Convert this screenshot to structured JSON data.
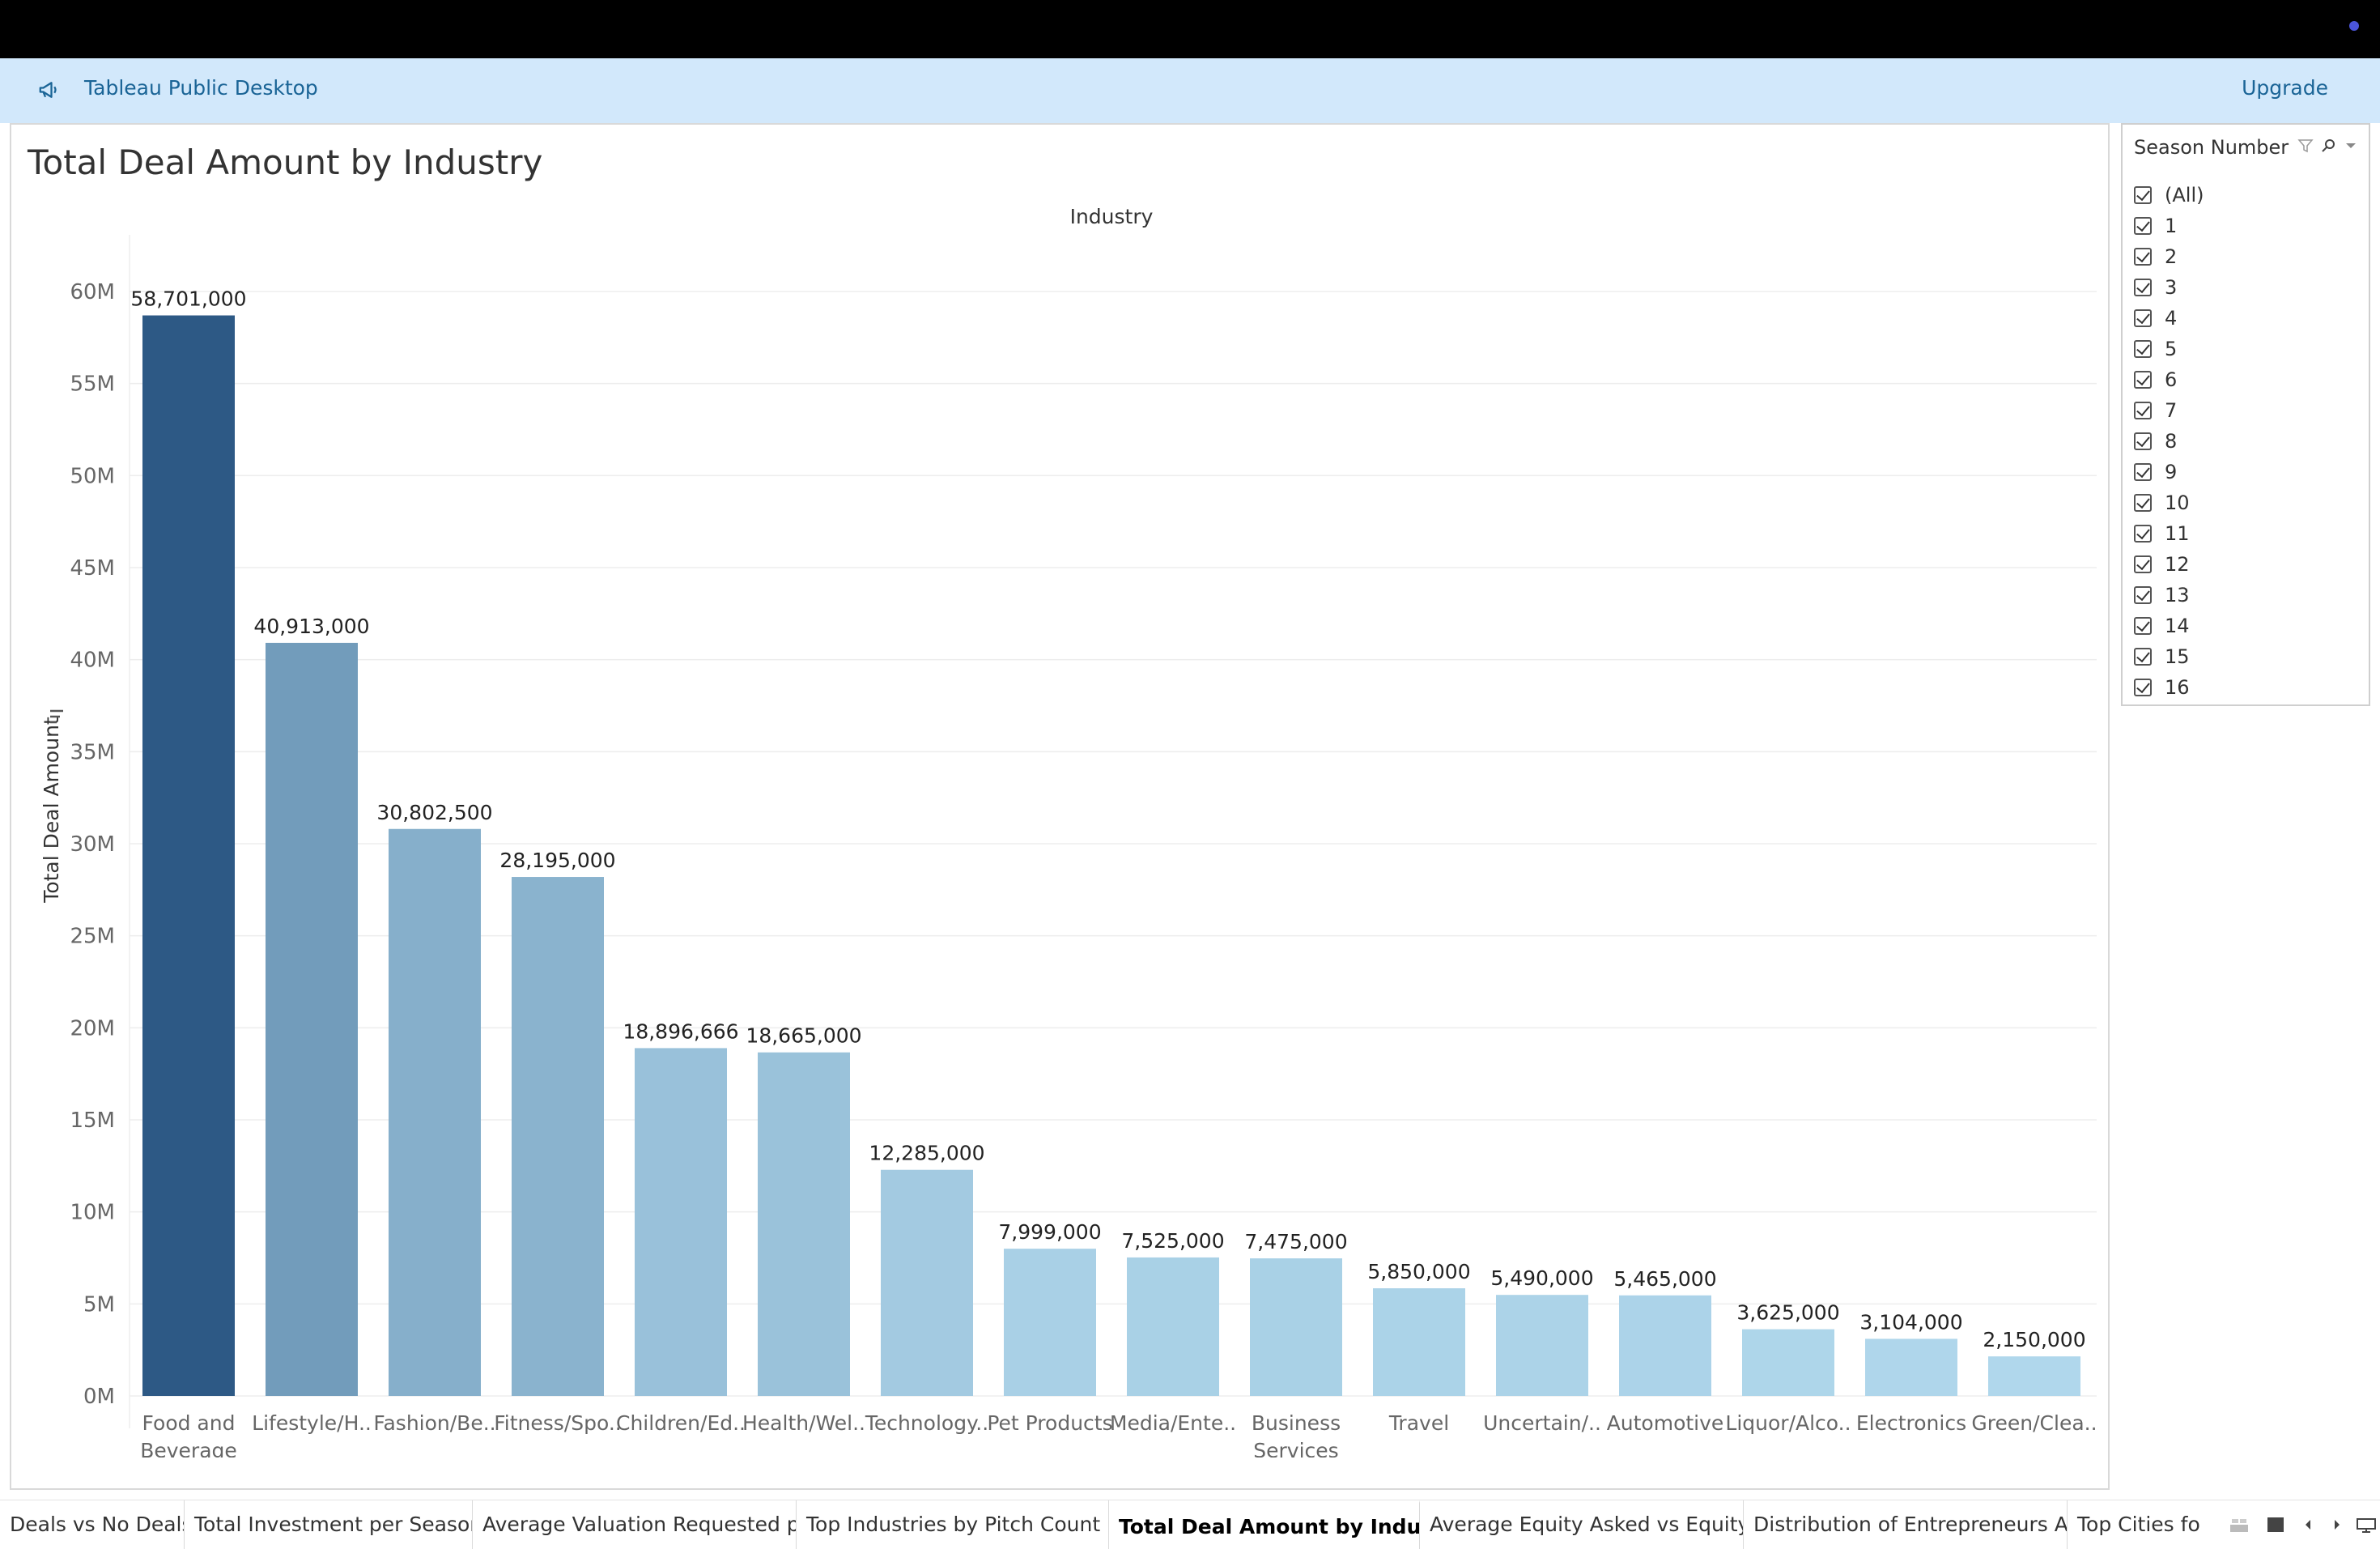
{
  "banner": {
    "app_title": "Tableau Public Desktop",
    "upgrade_label": "Upgrade"
  },
  "sheet": {
    "title": "Total Deal Amount by Industry"
  },
  "filter": {
    "title": "Season Number",
    "items": [
      "(All)",
      "1",
      "2",
      "3",
      "4",
      "5",
      "6",
      "7",
      "8",
      "9",
      "10",
      "11",
      "12",
      "13",
      "14",
      "15",
      "16"
    ]
  },
  "tabs": [
    "Deals vs No Deals",
    "Total Investment per Season",
    "Average Valuation Requested p...",
    "Top Industries by Pitch Count",
    "Total Deal Amount by Industry",
    "Average Equity Asked vs Equity ...",
    "Distribution of Entrepreneurs Av...",
    "Top Cities for E"
  ],
  "active_tab": "Total Deal Amount by Industry",
  "colors": {
    "dark_bar": "#2d5985",
    "light_bar": "#b3daee",
    "banner": "#d2e8fb",
    "link": "#1a6496"
  },
  "chart_data": {
    "type": "bar",
    "title": "Total Deal Amount by Industry",
    "xlabel": "Industry",
    "ylabel": "Total Deal Amount",
    "ylim": [
      0,
      60000000
    ],
    "yticks": [
      0,
      5000000,
      10000000,
      15000000,
      20000000,
      25000000,
      30000000,
      35000000,
      40000000,
      45000000,
      50000000,
      55000000,
      60000000
    ],
    "ytick_labels": [
      "0M",
      "5M",
      "10M",
      "15M",
      "20M",
      "25M",
      "30M",
      "35M",
      "40M",
      "45M",
      "50M",
      "55M",
      "60M"
    ],
    "grid": true,
    "categories": [
      [
        "Food and",
        "Beverage"
      ],
      [
        "Lifestyle/H.."
      ],
      [
        "Fashion/Be.."
      ],
      [
        "Fitness/Spo.."
      ],
      [
        "Children/Ed.."
      ],
      [
        "Health/Wel.."
      ],
      [
        "Technology.."
      ],
      [
        "Pet Products"
      ],
      [
        "Media/Ente.."
      ],
      [
        "Business",
        "Services"
      ],
      [
        "Travel"
      ],
      [
        "Uncertain/.."
      ],
      [
        "Automotive"
      ],
      [
        "Liquor/Alco.."
      ],
      [
        "Electronics"
      ],
      [
        "Green/Clea.."
      ]
    ],
    "values": [
      58701000,
      40913000,
      30802500,
      28195000,
      18896666,
      18665000,
      12285000,
      7999000,
      7525000,
      7475000,
      5850000,
      5490000,
      5465000,
      3625000,
      3104000,
      2150000
    ],
    "value_labels": [
      "58,701,000",
      "40,913,000",
      "30,802,500",
      "28,195,000",
      "18,896,666",
      "18,665,000",
      "12,285,000",
      "7,999,000",
      "7,525,000",
      "7,475,000",
      "5,850,000",
      "5,490,000",
      "5,465,000",
      "3,625,000",
      "3,104,000",
      "2,150,000"
    ]
  }
}
